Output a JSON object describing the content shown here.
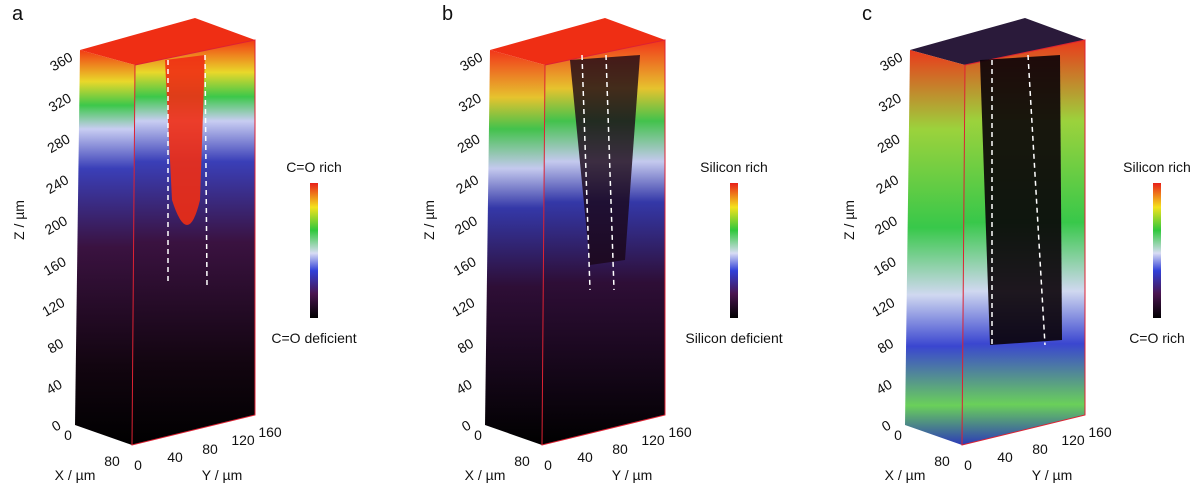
{
  "panels": [
    {
      "label": "a",
      "z_label": "Z / µm",
      "z_ticks": [
        "0",
        "40",
        "80",
        "120",
        "160",
        "200",
        "240",
        "280",
        "320",
        "360"
      ],
      "x_label": "X / µm",
      "x_ticks": [
        "0",
        "80"
      ],
      "y_label": "Y / µm",
      "y_ticks": [
        "0",
        "40",
        "80",
        "120",
        "160"
      ],
      "colorbar_top": "C=O rich",
      "colorbar_bottom": "C=O deficient"
    },
    {
      "label": "b",
      "z_label": "Z / µm",
      "z_ticks": [
        "0",
        "40",
        "80",
        "120",
        "160",
        "200",
        "240",
        "280",
        "320",
        "360"
      ],
      "x_label": "X / µm",
      "x_ticks": [
        "0",
        "80"
      ],
      "y_label": "Y / µm",
      "y_ticks": [
        "0",
        "40",
        "80",
        "120",
        "160"
      ],
      "colorbar_top": "Silicon rich",
      "colorbar_bottom": "Silicon deficient"
    },
    {
      "label": "c",
      "z_label": "Z / µm",
      "z_ticks": [
        "0",
        "40",
        "80",
        "120",
        "160",
        "200",
        "240",
        "280",
        "320",
        "360"
      ],
      "x_label": "X / µm",
      "x_ticks": [
        "0",
        "80"
      ],
      "y_label": "Y / µm",
      "y_ticks": [
        "0",
        "40",
        "80",
        "120",
        "160"
      ],
      "colorbar_top": "Silicon rich",
      "colorbar_bottom": "C=O rich"
    }
  ]
}
